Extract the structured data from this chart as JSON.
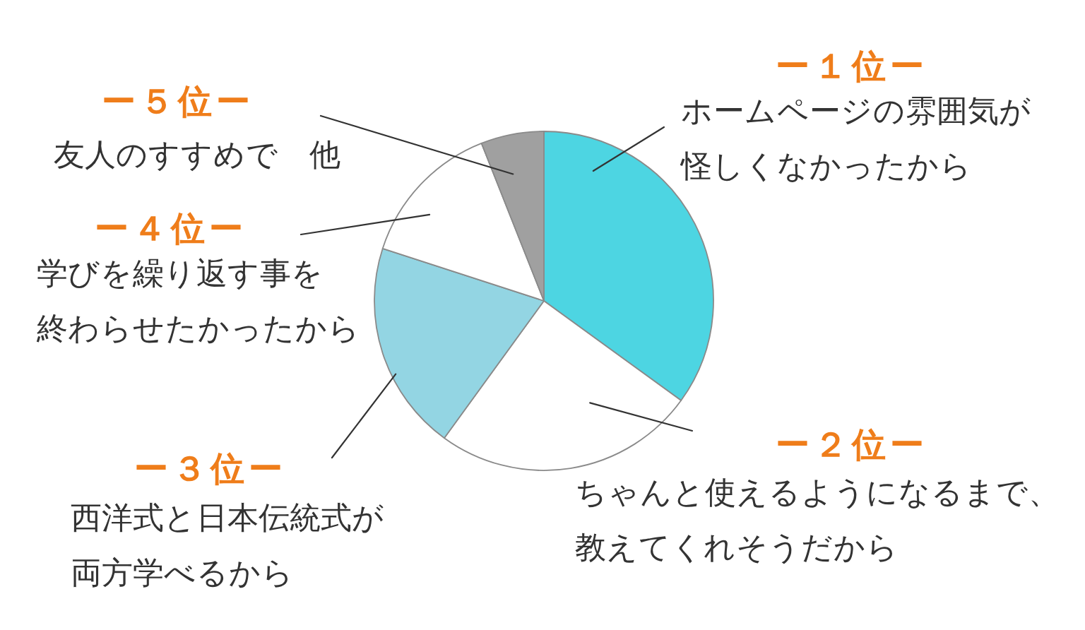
{
  "chart_data": {
    "type": "pie",
    "categories": [
      "ホームページの雰囲気が怪しくなかったから",
      "ちゃんと使えるようになるまで、教えてくれそうだから",
      "西洋式と日本伝統式が両方学べるから",
      "学びを繰り返す事を終わらせたかったから",
      "友人のすすめで　他"
    ],
    "values": [
      35,
      25,
      20,
      14,
      6
    ],
    "colors": [
      "#4dd5e2",
      "#ffffff",
      "#93d5e3",
      "#ffffff",
      "#a0a0a0"
    ],
    "annotations": [
      "ー１位ー",
      "ー２位ー",
      "ー３位ー",
      "ー４位ー",
      "ー５位ー"
    ]
  }
}
